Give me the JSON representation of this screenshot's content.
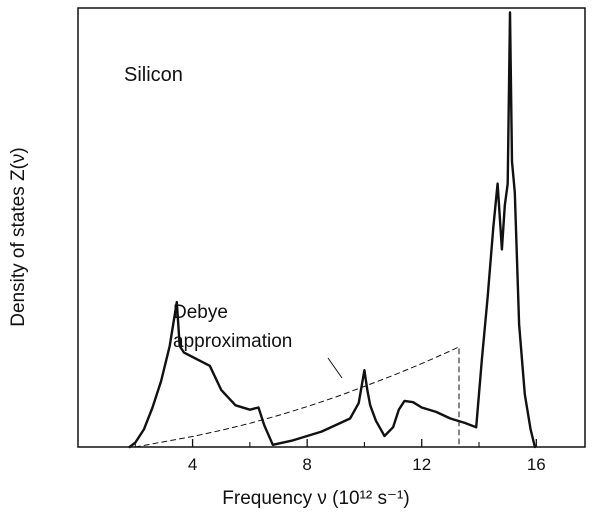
{
  "chart_data": {
    "type": "line",
    "annotation_label": "Silicon",
    "xlabel": "Frequency ν (10¹² s⁻¹)",
    "ylabel": "Density of states Z(ν)",
    "xlim": [
      0,
      17.7
    ],
    "ylim": [
      0,
      1.0
    ],
    "x_ticks": [
      4,
      8,
      12,
      16
    ],
    "x_tick_labels": [
      "4",
      "8",
      "12",
      "16"
    ],
    "grid": false,
    "legend": "none",
    "series": [
      {
        "style": "solid",
        "x": [
          1.8,
          2.0,
          2.3,
          2.6,
          2.9,
          3.2,
          3.45,
          3.55,
          3.7,
          4.0,
          4.3,
          4.6,
          5.0,
          5.5,
          6.0,
          6.3,
          6.5,
          6.8,
          7.5,
          8.5,
          9.5,
          9.8,
          10.0,
          10.1,
          10.2,
          10.4,
          10.7,
          11.0,
          11.2,
          11.4,
          11.7,
          12.0,
          12.5,
          13.0,
          13.5,
          13.9,
          14.1,
          14.3,
          14.5,
          14.65,
          14.8,
          14.9,
          15.0,
          15.08,
          15.15,
          15.25,
          15.4,
          15.6,
          15.8,
          15.95
        ],
        "y": [
          0.0,
          0.01,
          0.04,
          0.09,
          0.15,
          0.23,
          0.33,
          0.23,
          0.215,
          0.205,
          0.195,
          0.185,
          0.13,
          0.095,
          0.085,
          0.09,
          0.05,
          0.005,
          0.015,
          0.035,
          0.065,
          0.1,
          0.175,
          0.13,
          0.095,
          0.06,
          0.025,
          0.045,
          0.085,
          0.105,
          0.102,
          0.09,
          0.08,
          0.065,
          0.055,
          0.045,
          0.2,
          0.34,
          0.5,
          0.6,
          0.45,
          0.55,
          0.6,
          0.99,
          0.65,
          0.58,
          0.28,
          0.12,
          0.04,
          0.0
        ]
      },
      {
        "style": "dashed",
        "name": "Debye approximation",
        "x": [
          2.0,
          3.0,
          4.0,
          5.0,
          6.0,
          7.0,
          8.0,
          9.0,
          10.0,
          11.0,
          12.0,
          13.0,
          13.3,
          13.3
        ],
        "y": [
          0.0,
          0.012,
          0.024,
          0.038,
          0.054,
          0.072,
          0.092,
          0.114,
          0.138,
          0.163,
          0.19,
          0.219,
          0.228,
          0.0
        ]
      }
    ]
  }
}
